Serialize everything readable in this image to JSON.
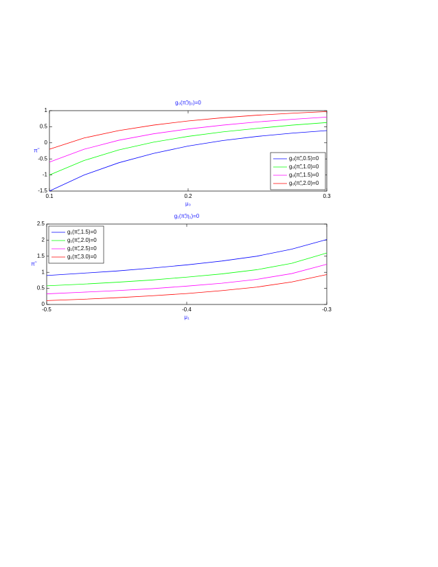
{
  "chart_data": [
    {
      "type": "line",
      "title": "g₀(π̃;η₀)=0",
      "x_label": "μ₀",
      "y_label": "π̃",
      "x": [
        0.1,
        0.125,
        0.15,
        0.175,
        0.2,
        0.225,
        0.25,
        0.275,
        0.3
      ],
      "xlim": [
        0.1,
        0.3
      ],
      "xticks": [
        0.1,
        0.2,
        0.3
      ],
      "ylim": [
        -1.5,
        1
      ],
      "yticks": [
        -1.5,
        -1,
        -0.5,
        0,
        0.5,
        1
      ],
      "legend": "lower-right",
      "series": [
        {
          "name": "g₀(π̃;,0.5)=0",
          "color": "#0000ff",
          "values": [
            -1.5,
            -1.0,
            -0.62,
            -0.33,
            -0.1,
            0.07,
            0.2,
            0.3,
            0.38
          ]
        },
        {
          "name": "g₀(π̃;,1.0)=0",
          "color": "#00ff00",
          "values": [
            -1.0,
            -0.55,
            -0.22,
            0.02,
            0.2,
            0.34,
            0.45,
            0.55,
            0.63
          ]
        },
        {
          "name": "g₀(π̃;,1.5)=0",
          "color": "#ff00ff",
          "values": [
            -0.6,
            -0.2,
            0.08,
            0.28,
            0.43,
            0.55,
            0.65,
            0.73,
            0.8
          ]
        },
        {
          "name": "g₀(π̃;,2.0)=0",
          "color": "#ff0000",
          "values": [
            -0.2,
            0.15,
            0.38,
            0.55,
            0.68,
            0.78,
            0.86,
            0.92,
            0.97
          ]
        }
      ]
    },
    {
      "type": "line",
      "title": "g₁(π̃;η₁)=0",
      "x_label": "μ₁",
      "y_label": "π̃",
      "x": [
        -0.5,
        -0.475,
        -0.45,
        -0.425,
        -0.4,
        -0.375,
        -0.35,
        -0.325,
        -0.3
      ],
      "xlim": [
        -0.5,
        -0.3
      ],
      "xticks": [
        -0.5,
        -0.4,
        -0.3
      ],
      "ylim": [
        0,
        2.5
      ],
      "yticks": [
        0,
        0.5,
        1,
        1.5,
        2,
        2.5
      ],
      "legend": "upper-left",
      "series": [
        {
          "name": "g₁(π̃;,1.5)=0",
          "color": "#0000ff",
          "values": [
            0.9,
            0.97,
            1.04,
            1.13,
            1.23,
            1.35,
            1.5,
            1.72,
            2.02
          ]
        },
        {
          "name": "g₁(π̃;,2.0)=0",
          "color": "#00ff00",
          "values": [
            0.58,
            0.63,
            0.69,
            0.76,
            0.85,
            0.95,
            1.08,
            1.28,
            1.6
          ]
        },
        {
          "name": "g₁(π̃;,2.5)=0",
          "color": "#ff00ff",
          "values": [
            0.33,
            0.38,
            0.43,
            0.49,
            0.57,
            0.66,
            0.78,
            0.96,
            1.25
          ]
        },
        {
          "name": "g₁(π̃;,3.0)=0",
          "color": "#ff0000",
          "values": [
            0.12,
            0.16,
            0.21,
            0.27,
            0.34,
            0.43,
            0.54,
            0.7,
            0.93
          ]
        }
      ]
    }
  ]
}
